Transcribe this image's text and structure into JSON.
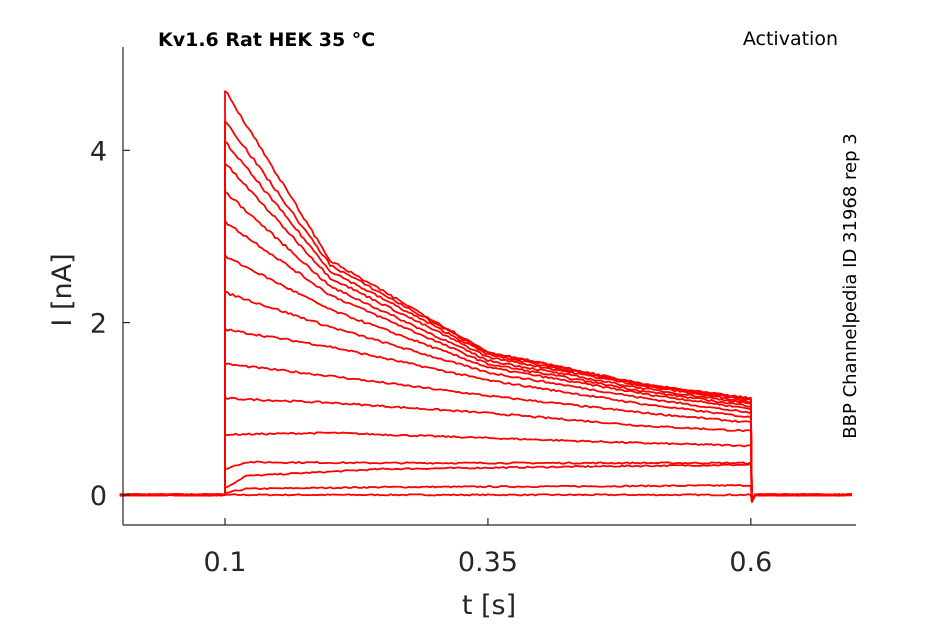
{
  "chart_data": {
    "type": "line",
    "title": "Kv1.6  Rat  HEK  35 °C",
    "protocol_label": "Activation",
    "side_label": "BBP Channelpedia ID 31968 rep 3",
    "xlabel": "t [s]",
    "ylabel": "I [nA]",
    "xlim": [
      0.003,
      0.7
    ],
    "ylim": [
      -0.35,
      5.2
    ],
    "x_ticks": [
      0.1,
      0.35,
      0.6
    ],
    "x_tick_labels": [
      "0.1",
      "0.35",
      "0.6"
    ],
    "y_ticks": [
      0,
      2,
      4
    ],
    "y_tick_labels": [
      "0",
      "2",
      "4"
    ],
    "grid": false,
    "line_color": "#ff0000",
    "pulse_start_s": 0.1,
    "pulse_end_s": 0.6,
    "series": [
      {
        "values": [
          [
            0.1,
            0.0
          ],
          [
            0.6,
            0.0
          ]
        ]
      },
      {
        "values": [
          [
            0.1,
            0.02
          ],
          [
            0.12,
            0.07
          ],
          [
            0.25,
            0.09
          ],
          [
            0.45,
            0.1
          ],
          [
            0.6,
            0.11
          ]
        ]
      },
      {
        "values": [
          [
            0.1,
            0.08
          ],
          [
            0.12,
            0.22
          ],
          [
            0.25,
            0.3
          ],
          [
            0.45,
            0.33
          ],
          [
            0.6,
            0.35
          ]
        ]
      },
      {
        "values": [
          [
            0.1,
            0.3
          ],
          [
            0.12,
            0.38
          ],
          [
            0.25,
            0.37
          ],
          [
            0.45,
            0.37
          ],
          [
            0.6,
            0.37
          ]
        ]
      },
      {
        "values": [
          [
            0.1,
            0.7
          ],
          [
            0.2,
            0.72
          ],
          [
            0.35,
            0.66
          ],
          [
            0.5,
            0.6
          ],
          [
            0.6,
            0.57
          ]
        ]
      },
      {
        "values": [
          [
            0.1,
            1.12
          ],
          [
            0.2,
            1.07
          ],
          [
            0.35,
            0.95
          ],
          [
            0.5,
            0.8
          ],
          [
            0.6,
            0.74
          ]
        ]
      },
      {
        "values": [
          [
            0.1,
            1.52
          ],
          [
            0.2,
            1.38
          ],
          [
            0.35,
            1.15
          ],
          [
            0.5,
            0.95
          ],
          [
            0.6,
            0.84
          ]
        ]
      },
      {
        "values": [
          [
            0.1,
            1.92
          ],
          [
            0.2,
            1.72
          ],
          [
            0.35,
            1.33
          ],
          [
            0.5,
            1.05
          ],
          [
            0.6,
            0.9
          ]
        ]
      },
      {
        "values": [
          [
            0.1,
            2.35
          ],
          [
            0.2,
            1.95
          ],
          [
            0.35,
            1.42
          ],
          [
            0.5,
            1.12
          ],
          [
            0.6,
            0.95
          ]
        ]
      },
      {
        "values": [
          [
            0.1,
            2.77
          ],
          [
            0.2,
            2.15
          ],
          [
            0.35,
            1.48
          ],
          [
            0.5,
            1.17
          ],
          [
            0.6,
            1.0
          ]
        ]
      },
      {
        "values": [
          [
            0.1,
            3.17
          ],
          [
            0.2,
            2.32
          ],
          [
            0.35,
            1.52
          ],
          [
            0.5,
            1.2
          ],
          [
            0.6,
            1.03
          ]
        ]
      },
      {
        "values": [
          [
            0.1,
            3.52
          ],
          [
            0.2,
            2.42
          ],
          [
            0.35,
            1.56
          ],
          [
            0.5,
            1.23
          ],
          [
            0.6,
            1.06
          ]
        ]
      },
      {
        "values": [
          [
            0.1,
            3.85
          ],
          [
            0.2,
            2.52
          ],
          [
            0.35,
            1.6
          ],
          [
            0.5,
            1.26
          ],
          [
            0.6,
            1.08
          ]
        ]
      },
      {
        "values": [
          [
            0.1,
            4.1
          ],
          [
            0.2,
            2.6
          ],
          [
            0.35,
            1.63
          ],
          [
            0.5,
            1.27
          ],
          [
            0.6,
            1.1
          ]
        ]
      },
      {
        "values": [
          [
            0.1,
            4.35
          ],
          [
            0.2,
            2.67
          ],
          [
            0.35,
            1.65
          ],
          [
            0.5,
            1.28
          ],
          [
            0.6,
            1.11
          ]
        ]
      },
      {
        "values": [
          [
            0.1,
            4.7
          ],
          [
            0.2,
            2.72
          ],
          [
            0.35,
            1.66
          ],
          [
            0.5,
            1.28
          ],
          [
            0.6,
            1.12
          ]
        ]
      }
    ]
  }
}
